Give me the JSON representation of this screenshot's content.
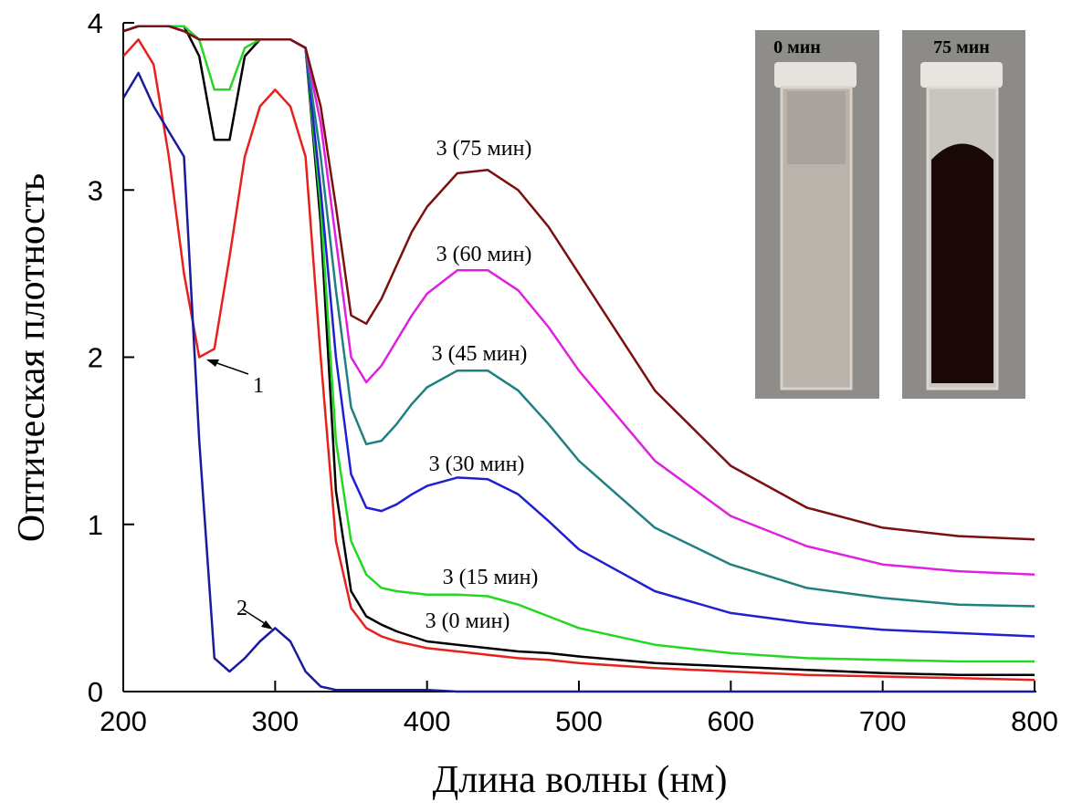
{
  "chart_data": {
    "type": "line",
    "xlabel": "Длина волны (нм)",
    "ylabel": "Оптическая плотность",
    "xlim": [
      200,
      800
    ],
    "xticks": [
      200,
      300,
      400,
      500,
      600,
      700,
      800
    ],
    "ylim": [
      0,
      4
    ],
    "yticks": [
      0,
      1,
      2,
      3,
      4
    ],
    "inset_labels": [
      "0 мин",
      "75 мин"
    ],
    "x": [
      200,
      210,
      220,
      230,
      240,
      250,
      260,
      270,
      280,
      290,
      300,
      310,
      320,
      330,
      340,
      350,
      360,
      370,
      380,
      390,
      400,
      420,
      440,
      460,
      480,
      500,
      550,
      600,
      650,
      700,
      750,
      800
    ],
    "series": [
      {
        "name": "1",
        "color": "#e8201c",
        "values": [
          3.8,
          3.9,
          3.75,
          3.2,
          2.5,
          2.0,
          2.05,
          2.6,
          3.2,
          3.5,
          3.6,
          3.5,
          3.2,
          2.0,
          0.9,
          0.5,
          0.38,
          0.33,
          0.3,
          0.28,
          0.26,
          0.24,
          0.22,
          0.2,
          0.19,
          0.17,
          0.14,
          0.12,
          0.1,
          0.09,
          0.08,
          0.07
        ]
      },
      {
        "name": "2",
        "color": "#1a1a9c",
        "values": [
          3.55,
          3.7,
          3.5,
          3.35,
          3.2,
          1.5,
          0.2,
          0.12,
          0.2,
          0.3,
          0.38,
          0.3,
          0.12,
          0.03,
          0.01,
          0.01,
          0.01,
          0.01,
          0.01,
          0.01,
          0.01,
          0,
          0,
          0,
          0,
          0,
          0,
          0,
          0,
          0,
          0,
          0
        ]
      },
      {
        "name": "3 (0 мин)",
        "color": "#000000",
        "values": [
          3.95,
          3.98,
          3.98,
          3.98,
          3.98,
          3.8,
          3.3,
          3.3,
          3.8,
          3.9,
          3.9,
          3.9,
          3.85,
          2.8,
          1.2,
          0.6,
          0.45,
          0.4,
          0.36,
          0.33,
          0.3,
          0.28,
          0.26,
          0.24,
          0.23,
          0.21,
          0.17,
          0.15,
          0.13,
          0.11,
          0.1,
          0.1
        ]
      },
      {
        "name": "3 (15 мин)",
        "color": "#22d822",
        "values": [
          3.95,
          3.98,
          3.98,
          3.98,
          3.98,
          3.9,
          3.6,
          3.6,
          3.85,
          3.9,
          3.9,
          3.9,
          3.85,
          2.9,
          1.5,
          0.9,
          0.7,
          0.62,
          0.6,
          0.59,
          0.58,
          0.58,
          0.57,
          0.52,
          0.45,
          0.38,
          0.28,
          0.23,
          0.2,
          0.19,
          0.18,
          0.18
        ]
      },
      {
        "name": "3 (30 мин)",
        "color": "#2020d0",
        "values": [
          3.95,
          3.98,
          3.98,
          3.98,
          3.95,
          3.9,
          3.9,
          3.9,
          3.9,
          3.9,
          3.9,
          3.9,
          3.85,
          3.0,
          2.0,
          1.3,
          1.1,
          1.08,
          1.12,
          1.18,
          1.23,
          1.28,
          1.27,
          1.18,
          1.02,
          0.85,
          0.6,
          0.47,
          0.41,
          0.37,
          0.35,
          0.33
        ]
      },
      {
        "name": "3 (45 мин)",
        "color": "#208080",
        "values": [
          3.95,
          3.98,
          3.98,
          3.98,
          3.95,
          3.9,
          3.9,
          3.9,
          3.9,
          3.9,
          3.9,
          3.9,
          3.85,
          3.2,
          2.4,
          1.7,
          1.48,
          1.5,
          1.6,
          1.72,
          1.82,
          1.92,
          1.92,
          1.8,
          1.6,
          1.38,
          0.98,
          0.76,
          0.62,
          0.56,
          0.52,
          0.51
        ]
      },
      {
        "name": "3 (60 мин)",
        "color": "#e020e0",
        "values": [
          3.95,
          3.98,
          3.98,
          3.98,
          3.95,
          3.9,
          3.9,
          3.9,
          3.9,
          3.9,
          3.9,
          3.9,
          3.85,
          3.4,
          2.7,
          2.0,
          1.85,
          1.95,
          2.1,
          2.25,
          2.38,
          2.52,
          2.52,
          2.4,
          2.18,
          1.92,
          1.38,
          1.05,
          0.87,
          0.76,
          0.72,
          0.7
        ]
      },
      {
        "name": "3 (75 мин)",
        "color": "#7a1010",
        "values": [
          3.95,
          3.98,
          3.98,
          3.98,
          3.95,
          3.9,
          3.9,
          3.9,
          3.9,
          3.9,
          3.9,
          3.9,
          3.85,
          3.5,
          2.9,
          2.25,
          2.2,
          2.35,
          2.55,
          2.75,
          2.9,
          3.1,
          3.12,
          3.0,
          2.78,
          2.5,
          1.8,
          1.35,
          1.1,
          0.98,
          0.93,
          0.91
        ]
      }
    ]
  }
}
